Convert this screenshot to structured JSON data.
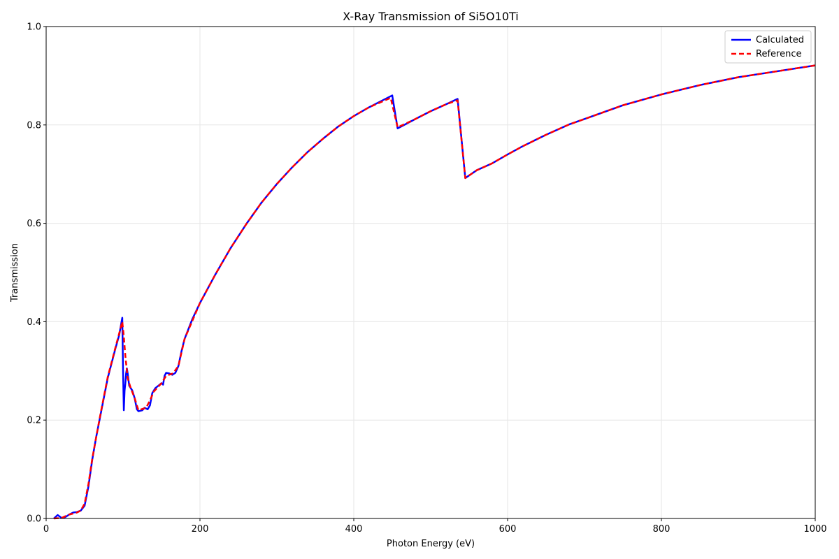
{
  "chart_data": {
    "type": "line",
    "title": "X-Ray Transmission of Si5O10Ti",
    "xlabel": "Photon Energy (eV)",
    "ylabel": "Transmission",
    "xlim": [
      0,
      1000
    ],
    "ylim": [
      0,
      1.0
    ],
    "x_ticks": [
      "0",
      "200",
      "400",
      "600",
      "800",
      "1000"
    ],
    "y_ticks": [
      "0.0",
      "0.2",
      "0.4",
      "0.6",
      "0.8",
      "1.0"
    ],
    "grid": true,
    "legend_position": "top-right",
    "series": [
      {
        "name": "Calculated",
        "color": "#0000ff",
        "style": "solid",
        "points": [
          [
            10,
            0.0
          ],
          [
            15,
            0.007
          ],
          [
            20,
            0.001
          ],
          [
            25,
            0.003
          ],
          [
            30,
            0.008
          ],
          [
            35,
            0.012
          ],
          [
            40,
            0.013
          ],
          [
            45,
            0.016
          ],
          [
            50,
            0.026
          ],
          [
            55,
            0.065
          ],
          [
            60,
            0.12
          ],
          [
            65,
            0.165
          ],
          [
            70,
            0.205
          ],
          [
            75,
            0.245
          ],
          [
            80,
            0.285
          ],
          [
            85,
            0.315
          ],
          [
            90,
            0.345
          ],
          [
            95,
            0.373
          ],
          [
            99,
            0.408
          ],
          [
            100,
            0.3
          ],
          [
            101,
            0.22
          ],
          [
            102,
            0.26
          ],
          [
            103,
            0.275
          ],
          [
            104,
            0.295
          ],
          [
            105,
            0.305
          ],
          [
            106,
            0.295
          ],
          [
            108,
            0.27
          ],
          [
            112,
            0.26
          ],
          [
            115,
            0.245
          ],
          [
            118,
            0.222
          ],
          [
            120,
            0.218
          ],
          [
            125,
            0.22
          ],
          [
            128,
            0.225
          ],
          [
            132,
            0.222
          ],
          [
            135,
            0.23
          ],
          [
            138,
            0.255
          ],
          [
            142,
            0.265
          ],
          [
            146,
            0.27
          ],
          [
            150,
            0.275
          ],
          [
            152,
            0.272
          ],
          [
            154,
            0.29
          ],
          [
            156,
            0.296
          ],
          [
            160,
            0.295
          ],
          [
            164,
            0.292
          ],
          [
            168,
            0.296
          ],
          [
            172,
            0.31
          ],
          [
            176,
            0.34
          ],
          [
            180,
            0.365
          ],
          [
            190,
            0.405
          ],
          [
            200,
            0.438
          ],
          [
            220,
            0.496
          ],
          [
            240,
            0.55
          ],
          [
            260,
            0.598
          ],
          [
            280,
            0.642
          ],
          [
            300,
            0.68
          ],
          [
            320,
            0.714
          ],
          [
            340,
            0.745
          ],
          [
            360,
            0.772
          ],
          [
            380,
            0.797
          ],
          [
            400,
            0.818
          ],
          [
            420,
            0.836
          ],
          [
            440,
            0.852
          ],
          [
            450,
            0.86
          ],
          [
            457,
            0.793
          ],
          [
            480,
            0.812
          ],
          [
            500,
            0.828
          ],
          [
            520,
            0.842
          ],
          [
            535,
            0.853
          ],
          [
            545,
            0.692
          ],
          [
            560,
            0.708
          ],
          [
            580,
            0.722
          ],
          [
            600,
            0.74
          ],
          [
            620,
            0.757
          ],
          [
            650,
            0.78
          ],
          [
            680,
            0.801
          ],
          [
            700,
            0.812
          ],
          [
            750,
            0.84
          ],
          [
            800,
            0.862
          ],
          [
            850,
            0.881
          ],
          [
            900,
            0.897
          ],
          [
            950,
            0.909
          ],
          [
            1000,
            0.921
          ]
        ]
      },
      {
        "name": "Reference",
        "color": "#ff0000",
        "style": "dashed",
        "points": [
          [
            10,
            0.0
          ],
          [
            20,
            0.001
          ],
          [
            30,
            0.008
          ],
          [
            40,
            0.012
          ],
          [
            45,
            0.016
          ],
          [
            50,
            0.03
          ],
          [
            55,
            0.07
          ],
          [
            60,
            0.122
          ],
          [
            70,
            0.207
          ],
          [
            80,
            0.287
          ],
          [
            90,
            0.347
          ],
          [
            99,
            0.4
          ],
          [
            101,
            0.37
          ],
          [
            103,
            0.33
          ],
          [
            106,
            0.285
          ],
          [
            110,
            0.265
          ],
          [
            115,
            0.245
          ],
          [
            120,
            0.22
          ],
          [
            130,
            0.225
          ],
          [
            135,
            0.24
          ],
          [
            140,
            0.258
          ],
          [
            150,
            0.275
          ],
          [
            156,
            0.29
          ],
          [
            165,
            0.295
          ],
          [
            172,
            0.31
          ],
          [
            180,
            0.365
          ],
          [
            200,
            0.438
          ],
          [
            220,
            0.496
          ],
          [
            240,
            0.55
          ],
          [
            260,
            0.598
          ],
          [
            280,
            0.642
          ],
          [
            300,
            0.68
          ],
          [
            320,
            0.714
          ],
          [
            340,
            0.745
          ],
          [
            360,
            0.772
          ],
          [
            380,
            0.797
          ],
          [
            400,
            0.818
          ],
          [
            420,
            0.836
          ],
          [
            448,
            0.855
          ],
          [
            457,
            0.795
          ],
          [
            480,
            0.812
          ],
          [
            500,
            0.828
          ],
          [
            520,
            0.842
          ],
          [
            535,
            0.85
          ],
          [
            545,
            0.692
          ],
          [
            560,
            0.708
          ],
          [
            580,
            0.722
          ],
          [
            600,
            0.74
          ],
          [
            620,
            0.757
          ],
          [
            650,
            0.78
          ],
          [
            680,
            0.801
          ],
          [
            700,
            0.812
          ],
          [
            750,
            0.84
          ],
          [
            800,
            0.862
          ],
          [
            850,
            0.881
          ],
          [
            900,
            0.897
          ],
          [
            950,
            0.909
          ],
          [
            1000,
            0.921
          ]
        ]
      }
    ]
  }
}
